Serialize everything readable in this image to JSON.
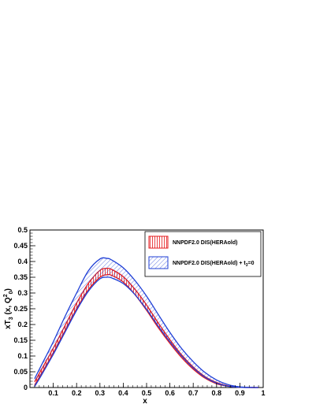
{
  "chart_data": {
    "type": "area",
    "xlabel": "x",
    "xlim": [
      0,
      1
    ],
    "ylim": [
      0,
      0.5
    ],
    "xticks": [
      0.1,
      0.2,
      0.3,
      0.4,
      0.5,
      0.6,
      0.7,
      0.8,
      0.9,
      1
    ],
    "xtick_labels": [
      "0.1",
      "0.2",
      "0.3",
      "0.4",
      "0.5",
      "0.6",
      "0.7",
      "0.8",
      "0.9",
      "1"
    ],
    "yticks": [
      0,
      0.05,
      0.1,
      0.15,
      0.2,
      0.25,
      0.3,
      0.35,
      0.4,
      0.45,
      0.5
    ],
    "ytick_labels": [
      "0",
      "0.05",
      "0.1",
      "0.15",
      "0.2",
      "0.25",
      "0.3",
      "0.35",
      "0.4",
      "0.45",
      "0.5"
    ],
    "legend_position": "top-right",
    "x": [
      0.02,
      0.05,
      0.1,
      0.15,
      0.2,
      0.25,
      0.3,
      0.33,
      0.35,
      0.4,
      0.45,
      0.5,
      0.55,
      0.6,
      0.65,
      0.7,
      0.75,
      0.8,
      0.85,
      0.9,
      0.95,
      0.98
    ],
    "series": [
      {
        "name": "NNPDF2.0 DIS(HERAold)",
        "color": "#e41a1c",
        "hatch": "vertical",
        "lower": [
          0.008,
          0.045,
          0.11,
          0.18,
          0.25,
          0.31,
          0.35,
          0.358,
          0.356,
          0.335,
          0.295,
          0.245,
          0.19,
          0.14,
          0.095,
          0.058,
          0.03,
          0.012,
          0.004,
          0.0008,
          0.0001,
          0.0
        ],
        "upper": [
          0.018,
          0.058,
          0.125,
          0.196,
          0.268,
          0.33,
          0.372,
          0.378,
          0.375,
          0.352,
          0.312,
          0.262,
          0.205,
          0.152,
          0.104,
          0.065,
          0.035,
          0.016,
          0.005,
          0.001,
          0.0002,
          0.0
        ]
      },
      {
        "name": "NNPDF2.0 DIS(HERAold) + t_3=0",
        "color": "#1f3fd6",
        "hatch": "diagonal",
        "lower": [
          0.003,
          0.04,
          0.105,
          0.175,
          0.245,
          0.305,
          0.345,
          0.35,
          0.348,
          0.33,
          0.295,
          0.248,
          0.195,
          0.145,
          0.1,
          0.062,
          0.033,
          0.014,
          0.004,
          0.0007,
          0.0001,
          0.0
        ],
        "upper": [
          0.028,
          0.072,
          0.145,
          0.225,
          0.3,
          0.37,
          0.408,
          0.41,
          0.405,
          0.38,
          0.34,
          0.29,
          0.232,
          0.175,
          0.124,
          0.082,
          0.048,
          0.024,
          0.009,
          0.002,
          0.0003,
          0.0
        ]
      }
    ]
  }
}
